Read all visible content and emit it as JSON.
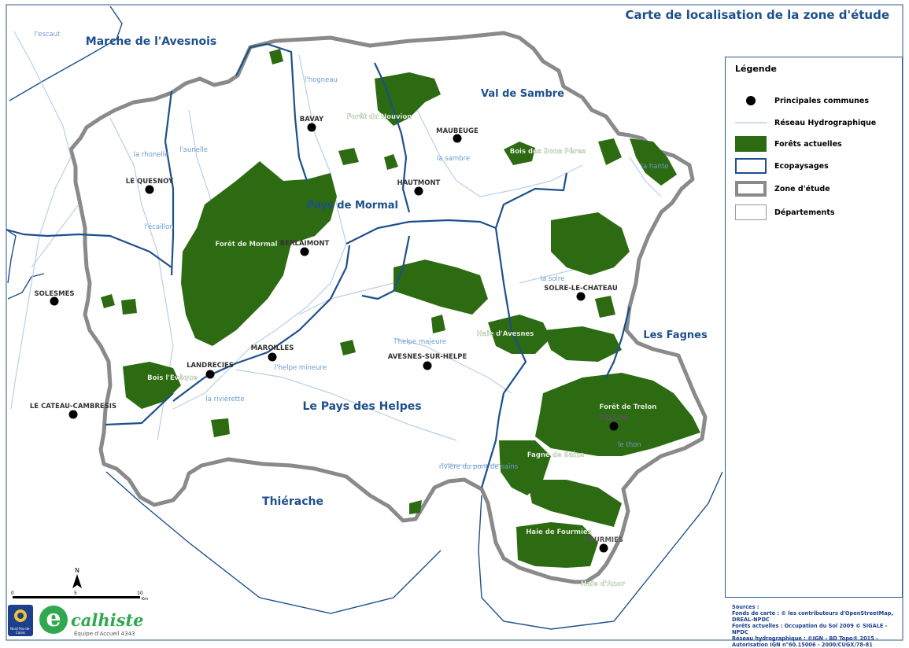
{
  "title": "Carte de localisation de la zone d'étude",
  "legend": {
    "title": "Légende",
    "items": [
      {
        "key": "communes",
        "label": "Principales communes",
        "icon": "dot-icon"
      },
      {
        "key": "hydro",
        "label": "Réseau Hydrographique",
        "icon": "line-icon"
      },
      {
        "key": "forets",
        "label": "Forêts actuelles",
        "icon": "green-rect-icon"
      },
      {
        "key": "ecopaysages",
        "label": "Ecopaysages",
        "icon": "blue-outline-icon"
      },
      {
        "key": "zone",
        "label": "Zone d'étude",
        "icon": "gray-outline-icon"
      },
      {
        "key": "departements",
        "label": "Départements",
        "icon": "white-rect-icon"
      }
    ]
  },
  "colors": {
    "forest": "#2d6b12",
    "ecopaysage_border": "#1d4f8c",
    "zone_border": "#8a8a8a",
    "river": "#b9cfe8",
    "title": "#1d4f8c",
    "river_label": "#6a9bd1"
  },
  "regions": [
    {
      "name": "Marche de l'Avesnois"
    },
    {
      "name": "Val de Sambre"
    },
    {
      "name": "Pays de Mormal"
    },
    {
      "name": "Les Fagnes"
    },
    {
      "name": "Le Pays des Helpes"
    },
    {
      "name": "Thiérache"
    }
  ],
  "communes": [
    {
      "name": "BAVAY"
    },
    {
      "name": "MAUBEUGE"
    },
    {
      "name": "LE QUESNOY"
    },
    {
      "name": "HAUTMONT"
    },
    {
      "name": "BERLAIMONT"
    },
    {
      "name": "SOLESMES"
    },
    {
      "name": "SOLRE-LE-CHATEAU"
    },
    {
      "name": "MAROILLES"
    },
    {
      "name": "LANDRECIES"
    },
    {
      "name": "AVESNES-SUR-HELPE"
    },
    {
      "name": "LE CATEAU-CAMBRESIS"
    },
    {
      "name": "TRELON"
    },
    {
      "name": "FOURMIES"
    }
  ],
  "rivers": [
    {
      "name": "l'escaut"
    },
    {
      "name": "l'hogneau"
    },
    {
      "name": "la rhonelle"
    },
    {
      "name": "l'aunelle"
    },
    {
      "name": "la sambre"
    },
    {
      "name": "la hante"
    },
    {
      "name": "l'écaillon"
    },
    {
      "name": "la solre"
    },
    {
      "name": "l'helpe majeure"
    },
    {
      "name": "l'helpe mineure"
    },
    {
      "name": "la rivièrette"
    },
    {
      "name": "le thon"
    },
    {
      "name": "rivière du pont de sains"
    }
  ],
  "forests": [
    {
      "name": "Forêt du Nouvion"
    },
    {
      "name": "Bois des Bons Pères"
    },
    {
      "name": "Forêt de Mormal"
    },
    {
      "name": "Haie d'Avesnes"
    },
    {
      "name": "Bois l'Evêque"
    },
    {
      "name": "Forêt de Trelon"
    },
    {
      "name": "Fagne de Sains"
    },
    {
      "name": "Haie de Fourmies"
    },
    {
      "name": "Haie d'Anor"
    }
  ],
  "north": "N",
  "scale": {
    "ticks": [
      "0",
      "5",
      "10"
    ],
    "unit": "Km"
  },
  "sources": [
    "Sources :",
    "Fonds de carte : © les contributeurs d'OpenStreetMap, DREAL-NPDC",
    "Forêts actuelles : Occupation du Sol 2009 © SIGALE - NPDC",
    "Réseau hydrographique : ©IGN - BD Topo® 2015 -",
    "Autorisation IGN n°60.15006 - 2000/CUGX/78-81"
  ],
  "logos": {
    "left": "Nord-Pas-de-Calais",
    "brand": "calhiste",
    "brand_sub": "Équipe d'Accueil 4343"
  }
}
